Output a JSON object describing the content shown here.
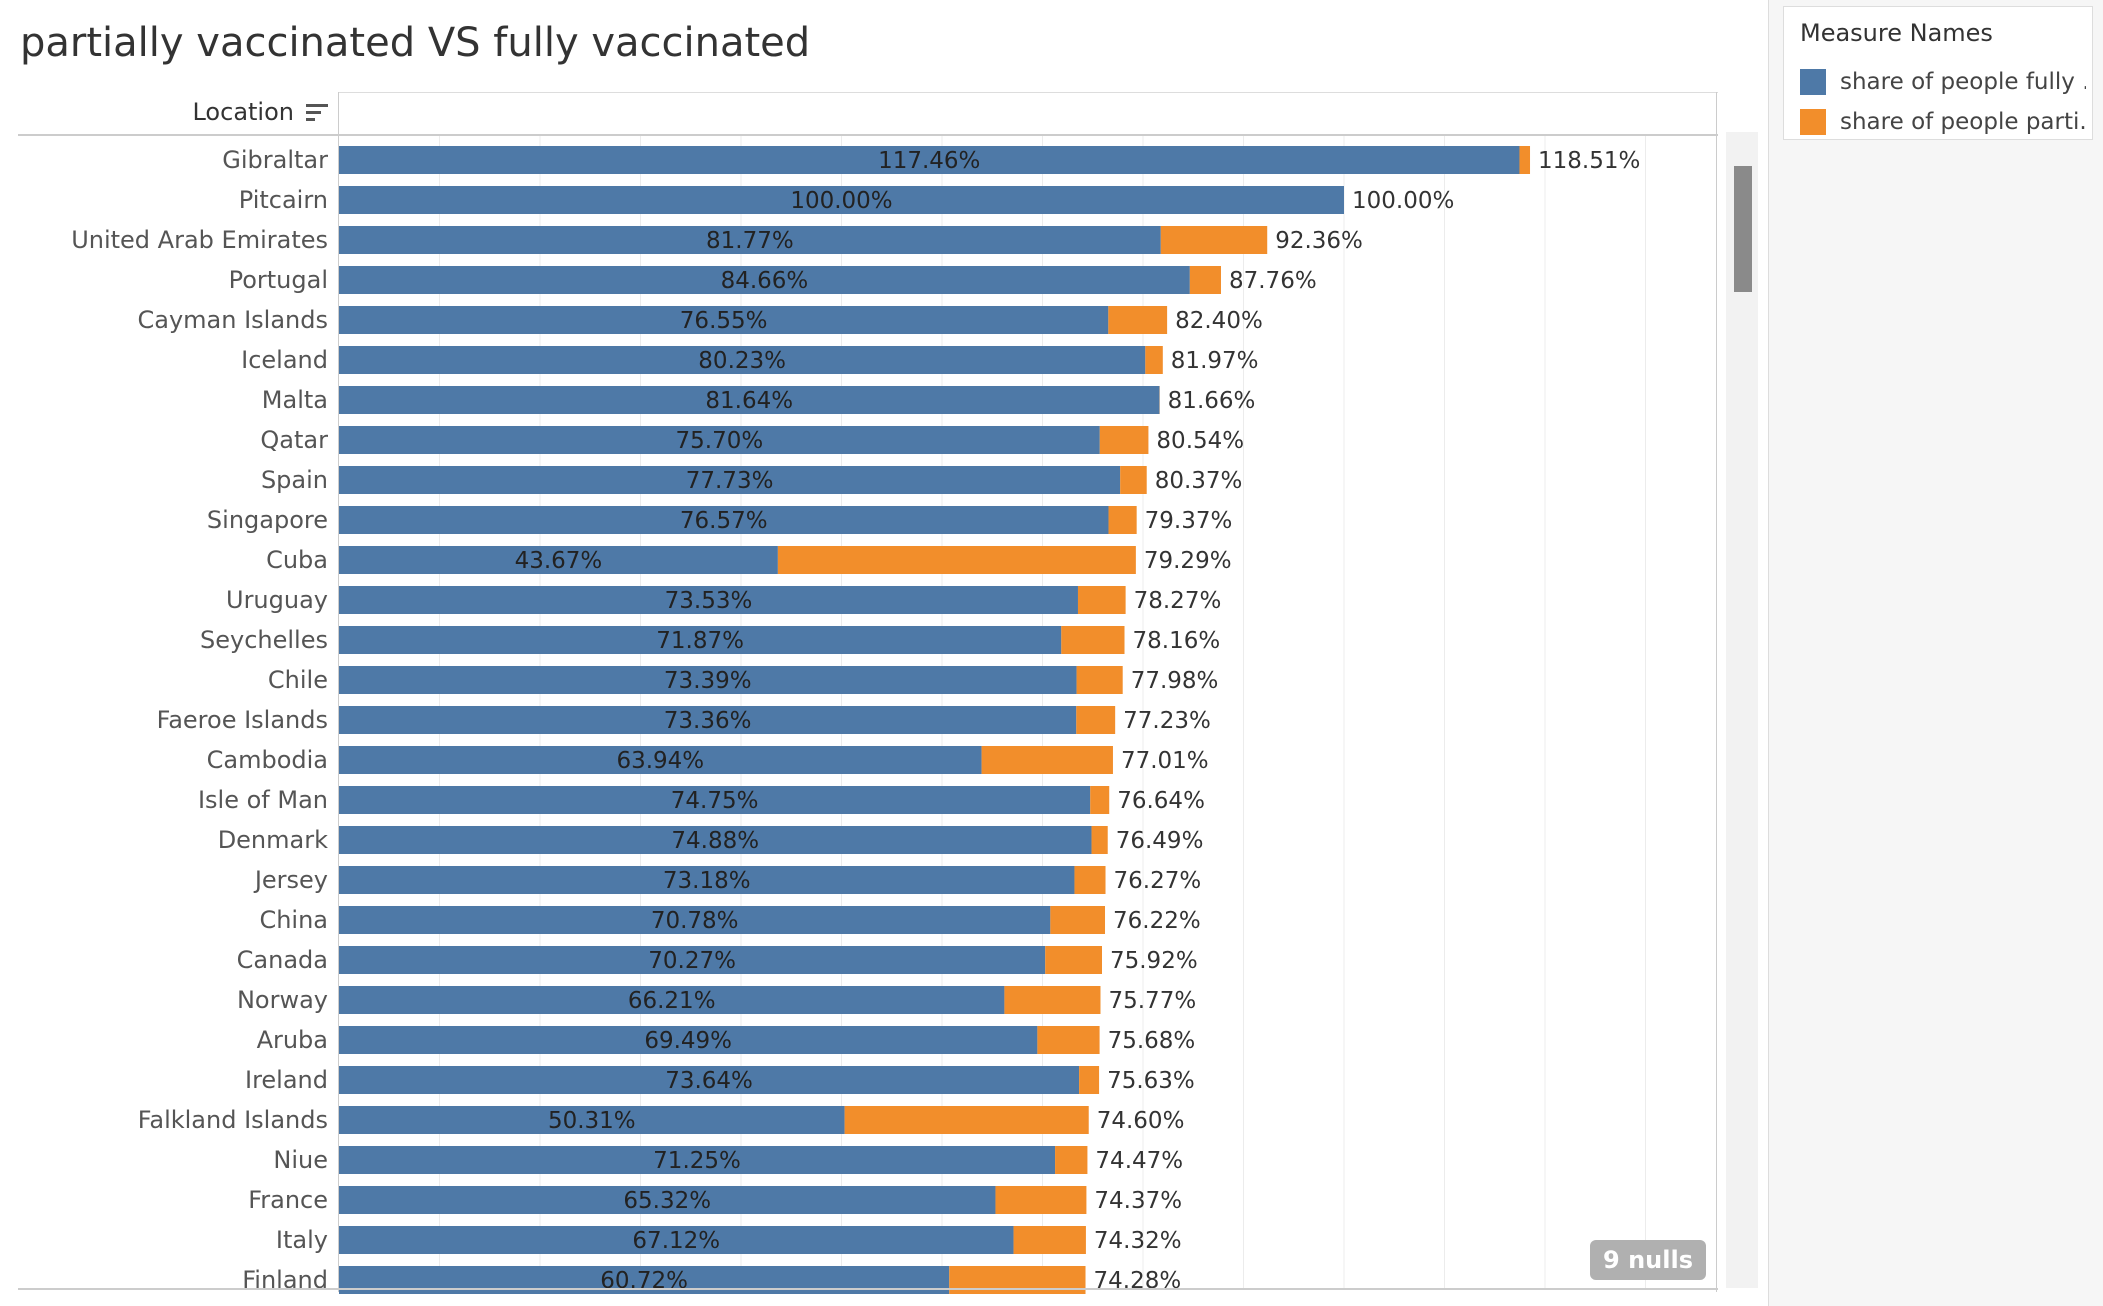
{
  "title": "partially vaccinated VS fully vaccinated",
  "location_header": "Location",
  "nulls_badge": "9 nulls",
  "legend": {
    "title": "Measure Names",
    "items": [
      {
        "label": "share of people fully ..",
        "color": "#4e79a7"
      },
      {
        "label": "share of people parti..",
        "color": "#f28e2b"
      }
    ]
  },
  "chart_data": {
    "type": "bar",
    "stacked": true,
    "orientation": "horizontal",
    "categories": [
      "Gibraltar",
      "Pitcairn",
      "United Arab Emirates",
      "Portugal",
      "Cayman Islands",
      "Iceland",
      "Malta",
      "Qatar",
      "Spain",
      "Singapore",
      "Cuba",
      "Uruguay",
      "Seychelles",
      "Chile",
      "Faeroe Islands",
      "Cambodia",
      "Isle of Man",
      "Denmark",
      "Jersey",
      "China",
      "Canada",
      "Norway",
      "Aruba",
      "Ireland",
      "Falkland Islands",
      "Niue",
      "France",
      "Italy",
      "Finland"
    ],
    "series": [
      {
        "name": "share of people fully ..",
        "color": "#4e79a7",
        "values": [
          117.46,
          100.0,
          81.77,
          84.66,
          76.55,
          80.23,
          81.64,
          75.7,
          77.73,
          76.57,
          43.67,
          73.53,
          71.87,
          73.39,
          73.36,
          63.94,
          74.75,
          74.88,
          73.18,
          70.78,
          70.27,
          66.21,
          69.49,
          73.64,
          50.31,
          71.25,
          65.32,
          67.12,
          60.72
        ],
        "labels": [
          "117.46%",
          "100.00%",
          "81.77%",
          "84.66%",
          "76.55%",
          "80.23%",
          "81.64%",
          "75.70%",
          "77.73%",
          "76.57%",
          "43.67%",
          "73.53%",
          "71.87%",
          "73.39%",
          "73.36%",
          "63.94%",
          "74.75%",
          "74.88%",
          "73.18%",
          "70.78%",
          "70.27%",
          "66.21%",
          "69.49%",
          "73.64%",
          "50.31%",
          "71.25%",
          "65.32%",
          "67.12%",
          "60.72%"
        ]
      },
      {
        "name": "share of people parti..",
        "color": "#f28e2b",
        "values": [
          1.05,
          0.0,
          10.59,
          3.1,
          5.85,
          1.74,
          0.02,
          4.84,
          2.64,
          2.8,
          35.62,
          4.74,
          6.29,
          4.59,
          3.87,
          13.07,
          1.89,
          1.61,
          3.09,
          5.44,
          5.65,
          9.56,
          6.19,
          1.99,
          24.29,
          3.22,
          9.05,
          7.2,
          13.56
        ]
      }
    ],
    "totals": [
      "118.51%",
      "100.00%",
      "92.36%",
      "87.76%",
      "82.40%",
      "81.97%",
      "81.66%",
      "80.54%",
      "80.37%",
      "79.37%",
      "79.29%",
      "78.27%",
      "78.16%",
      "77.98%",
      "77.23%",
      "77.01%",
      "76.64%",
      "76.49%",
      "76.27%",
      "76.22%",
      "75.92%",
      "75.77%",
      "75.68%",
      "75.63%",
      "74.60%",
      "74.47%",
      "74.37%",
      "74.32%",
      "74.28%"
    ],
    "xlim": [
      0,
      135
    ],
    "gridlines_at": [
      10,
      20,
      30,
      40,
      50,
      60,
      70,
      80,
      90,
      100,
      110,
      120,
      130
    ],
    "grid": true,
    "legend_position": "right"
  }
}
